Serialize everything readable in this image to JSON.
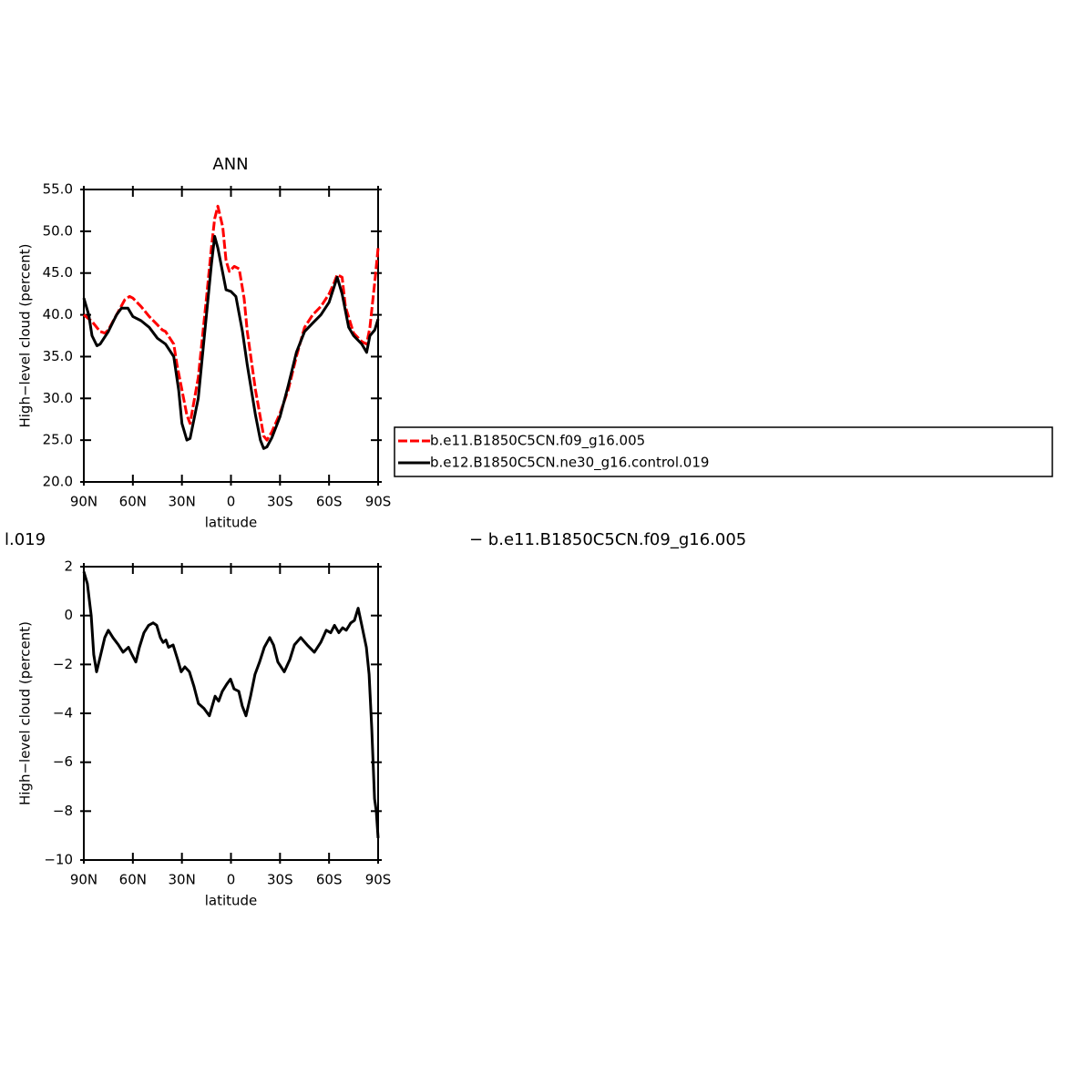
{
  "chart_data": [
    {
      "type": "line",
      "title": "ANN",
      "xlabel": "latitude",
      "ylabel": "High−level cloud (percent)",
      "xlim": [
        90,
        -90
      ],
      "xticks": [
        {
          "value": 90,
          "label": "90N"
        },
        {
          "value": 60,
          "label": "60N"
        },
        {
          "value": 30,
          "label": "30N"
        },
        0,
        {
          "value": -30,
          "label": "30S"
        },
        {
          "value": -60,
          "label": "60S"
        },
        {
          "value": -90,
          "label": "90S"
        }
      ],
      "ylim": [
        20,
        55
      ],
      "yticks": [
        {
          "value": 20,
          "label": "20.0"
        },
        {
          "value": 25,
          "label": "25.0"
        },
        {
          "value": 30,
          "label": "30.0"
        },
        {
          "value": 35,
          "label": "35.0"
        },
        {
          "value": 40,
          "label": "40.0"
        },
        {
          "value": 45,
          "label": "45.0"
        },
        {
          "value": 50,
          "label": "50.0"
        },
        {
          "value": 55,
          "label": "55.0"
        }
      ],
      "legend": "outside-right",
      "series": [
        {
          "name": "b.e11.B1850C5CN.f09_g16.005",
          "color": "#ff0000",
          "line_style": "dashed",
          "x": [
            90,
            85,
            80,
            77,
            75,
            70,
            65,
            62,
            60,
            55,
            50,
            45,
            42,
            40,
            35,
            33,
            30,
            27,
            25,
            20,
            15,
            12,
            10,
            8,
            5,
            3,
            1,
            -2,
            -5,
            -8,
            -10,
            -15,
            -20,
            -22,
            -25,
            -30,
            -35,
            -40,
            -45,
            -50,
            -55,
            -60,
            -63,
            -65,
            -68,
            -70,
            -75,
            -80,
            -83,
            -85,
            -88,
            -90
          ],
          "values": [
            40.0,
            39.2,
            38.0,
            37.8,
            38.2,
            40.0,
            41.8,
            42.2,
            42.0,
            41.0,
            39.8,
            38.8,
            38.2,
            38.0,
            36.5,
            34.0,
            31.0,
            28.0,
            27.0,
            32.5,
            42.0,
            48.0,
            51.5,
            53.0,
            50.5,
            46.5,
            45.2,
            45.8,
            45.5,
            42.0,
            38.0,
            31.0,
            25.5,
            25.0,
            26.0,
            28.2,
            31.0,
            35.0,
            38.5,
            40.0,
            41.0,
            42.5,
            43.8,
            44.8,
            44.5,
            41.0,
            37.8,
            36.8,
            36.5,
            38.5,
            44.0,
            48.0
          ]
        },
        {
          "name": "b.e12.B1850C5CN.ne30_g16.control.019",
          "color": "#000000",
          "line_style": "solid",
          "x": [
            90,
            87,
            85,
            82,
            80,
            75,
            70,
            67,
            63,
            60,
            55,
            50,
            45,
            40,
            35,
            32,
            30,
            27,
            25,
            20,
            15,
            12,
            10,
            8,
            5,
            3,
            0,
            -3,
            -7,
            -10,
            -15,
            -18,
            -20,
            -22,
            -25,
            -30,
            -35,
            -40,
            -45,
            -50,
            -55,
            -60,
            -65,
            -68,
            -72,
            -75,
            -80,
            -83,
            -85,
            -88,
            -90
          ],
          "values": [
            42,
            40,
            37.5,
            36.3,
            36.5,
            38,
            40,
            40.8,
            40.8,
            39.8,
            39.3,
            38.5,
            37.2,
            36.5,
            35,
            31,
            27,
            25,
            25.2,
            30,
            40,
            46,
            49.4,
            48,
            45,
            43,
            42.8,
            42.2,
            38,
            34,
            28,
            25,
            24,
            24.2,
            25.3,
            27.8,
            31.5,
            35.5,
            38,
            39,
            40,
            41.5,
            44.5,
            42.5,
            38.5,
            37.5,
            36.5,
            35.5,
            37.5,
            38.2,
            39.5
          ]
        }
      ]
    },
    {
      "type": "line",
      "title_left": "l.019",
      "title_right": "− b.e11.B1850C5CN.f09_g16.005",
      "xlabel": "latitude",
      "ylabel": "High−level cloud (percent)",
      "xlim": [
        90,
        -90
      ],
      "xticks": [
        {
          "value": 90,
          "label": "90N"
        },
        {
          "value": 60,
          "label": "60N"
        },
        {
          "value": 30,
          "label": "30N"
        },
        0,
        {
          "value": -30,
          "label": "30S"
        },
        {
          "value": -60,
          "label": "60S"
        },
        {
          "value": -90,
          "label": "90S"
        }
      ],
      "ylim": [
        -10,
        2
      ],
      "yticks": [
        {
          "value": -10,
          "label": "−10"
        },
        {
          "value": -8,
          "label": "−8"
        },
        {
          "value": -6,
          "label": "−6"
        },
        {
          "value": -4,
          "label": "−4"
        },
        {
          "value": -2,
          "label": "−2"
        },
        0,
        2
      ],
      "series": [
        {
          "color": "#000000",
          "line_style": "solid",
          "x": [
            90,
            87.8,
            85.5,
            83.9,
            82.2,
            80,
            77.2,
            75,
            72.2,
            68.8,
            66,
            62.7,
            60.5,
            58.2,
            56,
            53.2,
            50.4,
            47.6,
            45.4,
            43.2,
            41.5,
            39.8,
            38.2,
            35.4,
            32.6,
            30.4,
            28.2,
            25.4,
            22.6,
            19.9,
            16.5,
            13.2,
            9.7,
            7.5,
            5.3,
            2.5,
            0.3,
            -1.9,
            -4.8,
            -6.9,
            -9.2,
            -12,
            -14.7,
            -17.5,
            -20.4,
            -23.7,
            -26,
            -28.7,
            -32.6,
            -36,
            -38.8,
            -42.7,
            -46.6,
            -51,
            -54.9,
            -58.3,
            -61,
            -63.3,
            -66,
            -68.3,
            -70.5,
            -73.3,
            -75.5,
            -77.8,
            -80,
            -82.8,
            -84.5,
            -86.1,
            -87.8,
            -88.9,
            -90
          ],
          "values": [
            1.8,
            1.3,
            0.0,
            -1.6,
            -2.3,
            -1.7,
            -0.9,
            -0.6,
            -0.9,
            -1.2,
            -1.5,
            -1.3,
            -1.6,
            -1.9,
            -1.3,
            -0.7,
            -0.4,
            -0.3,
            -0.4,
            -0.9,
            -1.1,
            -1.0,
            -1.3,
            -1.2,
            -1.8,
            -2.3,
            -2.1,
            -2.3,
            -2.9,
            -3.6,
            -3.8,
            -4.1,
            -3.3,
            -3.5,
            -3.1,
            -2.8,
            -2.6,
            -3.0,
            -3.1,
            -3.7,
            -4.1,
            -3.3,
            -2.4,
            -1.9,
            -1.3,
            -0.9,
            -1.2,
            -1.9,
            -2.3,
            -1.8,
            -1.2,
            -0.9,
            -1.2,
            -1.5,
            -1.1,
            -0.6,
            -0.7,
            -0.4,
            -0.7,
            -0.5,
            -0.6,
            -0.3,
            -0.2,
            0.3,
            -0.4,
            -1.3,
            -2.4,
            -4.6,
            -7.5,
            -8.0,
            -9.1
          ]
        }
      ]
    }
  ]
}
